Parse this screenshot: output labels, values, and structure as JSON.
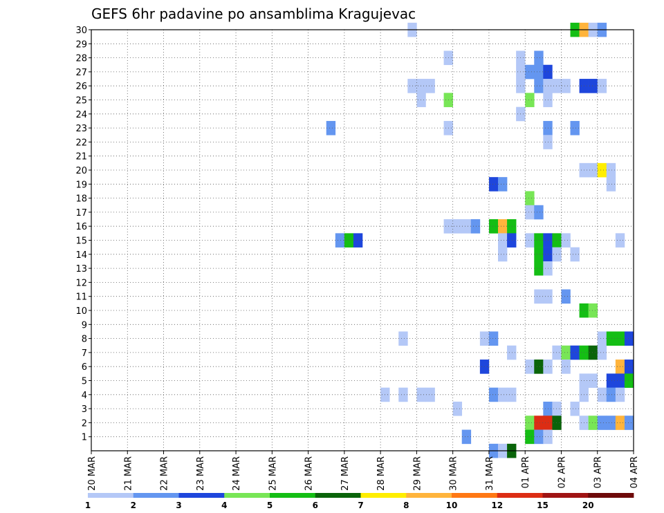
{
  "chart_data": {
    "type": "heatmap",
    "title": "GEFS 6hr padavine po ansamblima Kragujevac",
    "xlabel": "",
    "ylabel": "",
    "y_range": [
      0,
      30
    ],
    "y_ticks": [
      1,
      2,
      3,
      4,
      5,
      6,
      7,
      8,
      9,
      10,
      11,
      12,
      13,
      14,
      15,
      16,
      17,
      18,
      19,
      20,
      21,
      22,
      23,
      24,
      25,
      26,
      27,
      28,
      29,
      30
    ],
    "x_range": [
      0,
      60
    ],
    "x_ticks": [
      {
        "x": 0,
        "label": "20 MAR"
      },
      {
        "x": 4,
        "label": "21 MAR"
      },
      {
        "x": 8,
        "label": "22 MAR"
      },
      {
        "x": 12,
        "label": "23 MAR"
      },
      {
        "x": 16,
        "label": "24 MAR"
      },
      {
        "x": 20,
        "label": "25 MAR"
      },
      {
        "x": 24,
        "label": "26 MAR"
      },
      {
        "x": 28,
        "label": "27 MAR"
      },
      {
        "x": 32,
        "label": "28 MAR"
      },
      {
        "x": 36,
        "label": "29 MAR"
      },
      {
        "x": 40,
        "label": "30 MAR"
      },
      {
        "x": 44,
        "label": "31 MAR"
      },
      {
        "x": 48,
        "label": "01 APR"
      },
      {
        "x": 52,
        "label": "02 APR"
      },
      {
        "x": 56,
        "label": "03 APR"
      },
      {
        "x": 60,
        "label": "04 APR"
      }
    ],
    "grid": true,
    "legend_position": "bottom",
    "colorbar": {
      "colors": [
        "#b4c8f7",
        "#6496f0",
        "#1e46dc",
        "#78e656",
        "#14be14",
        "#0a640a",
        "#ffee00",
        "#ffb43c",
        "#ff7814",
        "#dc2d14",
        "#a01414",
        "#6e0a0a"
      ],
      "labels": [
        "1",
        "2",
        "3",
        "4",
        "5",
        "6",
        "7",
        "8",
        "10",
        "12",
        "15",
        "20"
      ]
    },
    "cells": [
      [
        35.5,
        30,
        1
      ],
      [
        53.5,
        30,
        5
      ],
      [
        54.5,
        30,
        8
      ],
      [
        55.5,
        30,
        1
      ],
      [
        56.5,
        30,
        2
      ],
      [
        39.5,
        28,
        1
      ],
      [
        47.5,
        28,
        1
      ],
      [
        49.5,
        28,
        2
      ],
      [
        47.5,
        27,
        1
      ],
      [
        48.5,
        27,
        2
      ],
      [
        49.5,
        27,
        2
      ],
      [
        50.5,
        27,
        3
      ],
      [
        35.5,
        26,
        1
      ],
      [
        36.5,
        26,
        1
      ],
      [
        37.5,
        26,
        1
      ],
      [
        47.5,
        26,
        1
      ],
      [
        49.5,
        26,
        2
      ],
      [
        50.5,
        26,
        1
      ],
      [
        51.5,
        26,
        1
      ],
      [
        52.5,
        26,
        1
      ],
      [
        54.5,
        26,
        3
      ],
      [
        55.5,
        26,
        3
      ],
      [
        56.5,
        26,
        1
      ],
      [
        36.5,
        25,
        1
      ],
      [
        39.5,
        25,
        4
      ],
      [
        48.5,
        25,
        4
      ],
      [
        50.5,
        25,
        1
      ],
      [
        47.5,
        24,
        1
      ],
      [
        26.5,
        23,
        2
      ],
      [
        39.5,
        23,
        1
      ],
      [
        50.5,
        23,
        2
      ],
      [
        53.5,
        23,
        2
      ],
      [
        50.5,
        22,
        1
      ],
      [
        54.5,
        20,
        1
      ],
      [
        55.5,
        20,
        1
      ],
      [
        56.5,
        20,
        7
      ],
      [
        57.5,
        20,
        1
      ],
      [
        57.5,
        19,
        1
      ],
      [
        44.5,
        19,
        3
      ],
      [
        45.5,
        19,
        2
      ],
      [
        48.5,
        18,
        4
      ],
      [
        48.5,
        17,
        1
      ],
      [
        49.5,
        17,
        2
      ],
      [
        39.5,
        16,
        1
      ],
      [
        40.5,
        16,
        1
      ],
      [
        41.5,
        16,
        1
      ],
      [
        42.5,
        16,
        2
      ],
      [
        44.5,
        16,
        5
      ],
      [
        45.5,
        16,
        8
      ],
      [
        46.5,
        16,
        5
      ],
      [
        27.5,
        15,
        2
      ],
      [
        28.5,
        15,
        5
      ],
      [
        29.5,
        15,
        3
      ],
      [
        45.5,
        15,
        1
      ],
      [
        46.5,
        15,
        3
      ],
      [
        48.5,
        15,
        1
      ],
      [
        49.5,
        15,
        5
      ],
      [
        50.5,
        15,
        3
      ],
      [
        51.5,
        15,
        5
      ],
      [
        52.5,
        15,
        1
      ],
      [
        58.5,
        15,
        1
      ],
      [
        45.5,
        14,
        1
      ],
      [
        49.5,
        14,
        5
      ],
      [
        50.5,
        14,
        3
      ],
      [
        51.5,
        14,
        1
      ],
      [
        53.5,
        14,
        1
      ],
      [
        49.5,
        13,
        5
      ],
      [
        50.5,
        13,
        1
      ],
      [
        49.5,
        11,
        1
      ],
      [
        50.5,
        11,
        1
      ],
      [
        52.5,
        11,
        2
      ],
      [
        54.5,
        10,
        5
      ],
      [
        55.5,
        10,
        4
      ],
      [
        34.5,
        8,
        1
      ],
      [
        43.5,
        8,
        1
      ],
      [
        44.5,
        8,
        2
      ],
      [
        56.5,
        8,
        1
      ],
      [
        57.5,
        8,
        5
      ],
      [
        58.5,
        8,
        5
      ],
      [
        59.5,
        8,
        3
      ],
      [
        46.5,
        7,
        1
      ],
      [
        51.5,
        7,
        1
      ],
      [
        52.5,
        7,
        4
      ],
      [
        53.5,
        7,
        3
      ],
      [
        54.5,
        7,
        5
      ],
      [
        55.5,
        7,
        6
      ],
      [
        56.5,
        7,
        1
      ],
      [
        43.5,
        6,
        3
      ],
      [
        48.5,
        6,
        1
      ],
      [
        49.5,
        6,
        6
      ],
      [
        50.5,
        6,
        1
      ],
      [
        52.5,
        6,
        1
      ],
      [
        58.5,
        6,
        8
      ],
      [
        59.5,
        6,
        3
      ],
      [
        54.5,
        5,
        1
      ],
      [
        55.5,
        5,
        1
      ],
      [
        57.5,
        5,
        3
      ],
      [
        58.5,
        5,
        3
      ],
      [
        59.5,
        5,
        5
      ],
      [
        32.5,
        4,
        1
      ],
      [
        34.5,
        4,
        1
      ],
      [
        36.5,
        4,
        1
      ],
      [
        37.5,
        4,
        1
      ],
      [
        44.5,
        4,
        2
      ],
      [
        45.5,
        4,
        1
      ],
      [
        46.5,
        4,
        1
      ],
      [
        54.5,
        4,
        1
      ],
      [
        56.5,
        4,
        1
      ],
      [
        57.5,
        4,
        2
      ],
      [
        58.5,
        4,
        1
      ],
      [
        40.5,
        3,
        1
      ],
      [
        50.5,
        3,
        2
      ],
      [
        51.5,
        3,
        1
      ],
      [
        53.5,
        3,
        1
      ],
      [
        48.5,
        2,
        4
      ],
      [
        49.5,
        2,
        10
      ],
      [
        50.5,
        2,
        10
      ],
      [
        51.5,
        2,
        6
      ],
      [
        54.5,
        2,
        1
      ],
      [
        55.5,
        2,
        4
      ],
      [
        56.5,
        2,
        2
      ],
      [
        57.5,
        2,
        2
      ],
      [
        58.5,
        2,
        8
      ],
      [
        59.5,
        2,
        2
      ],
      [
        41.5,
        1,
        2
      ],
      [
        48.5,
        1,
        5
      ],
      [
        49.5,
        1,
        2
      ],
      [
        50.5,
        1,
        1
      ],
      [
        44.5,
        0,
        2
      ],
      [
        45.5,
        0,
        1
      ],
      [
        46.5,
        0,
        6
      ]
    ]
  }
}
